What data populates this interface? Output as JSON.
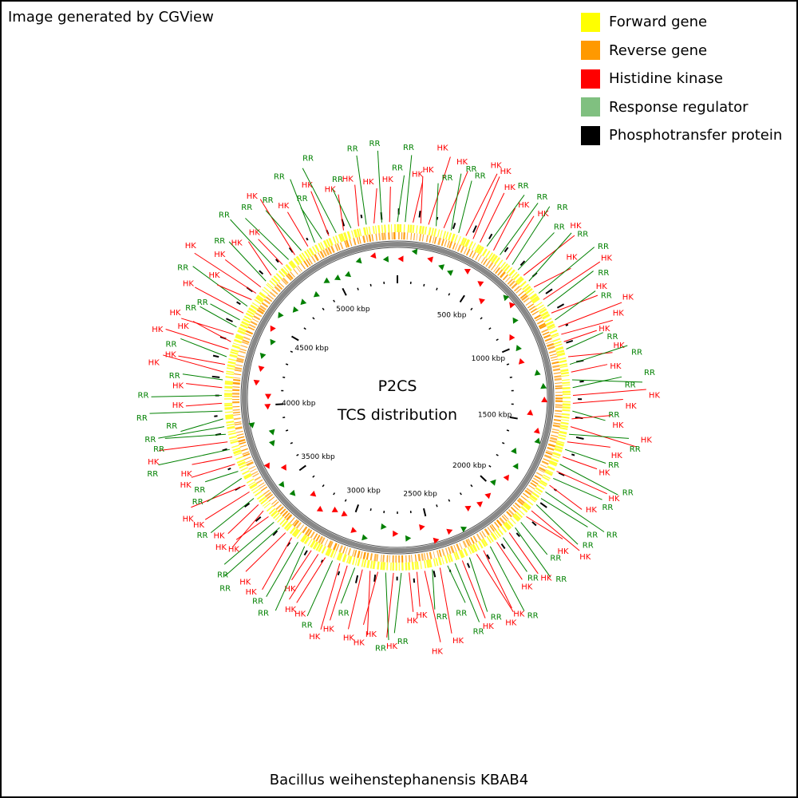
{
  "credit": "Image generated by CGView",
  "organism": "Bacillus weihenstephanensis KBAB4",
  "center_title": "P2CS",
  "center_subtitle": "TCS distribution",
  "legend": [
    {
      "label": "Forward gene",
      "color": "#ffff00"
    },
    {
      "label": "Reverse gene",
      "color": "#ff9900"
    },
    {
      "label": "Histidine kinase",
      "color": "#ff0000"
    },
    {
      "label": "Response regulator",
      "color": "#80c080"
    },
    {
      "label": "Phosphotransfer protein",
      "color": "#000000"
    }
  ],
  "colors": {
    "hk_text": "#ff0000",
    "rr_text": "#008000",
    "backbone": "#808080"
  },
  "scale_labels": [
    "500 kbp",
    "1000 kbp",
    "1500 kbp",
    "2000 kbp",
    "2500 kbp",
    "3000 kbp",
    "3500 kbp",
    "4000 kbp",
    "4500 kbp",
    "5000 kbp"
  ],
  "labels": [
    {
      "text": "RR",
      "type": "RR"
    },
    {
      "text": "RR",
      "type": "RR"
    },
    {
      "text": "HK",
      "type": "HK"
    },
    {
      "text": "HK",
      "type": "HK"
    },
    {
      "text": "HK",
      "type": "HK"
    },
    {
      "text": "RR",
      "type": "RR"
    },
    {
      "text": "HK",
      "type": "HK"
    },
    {
      "text": "RR",
      "type": "RR"
    },
    {
      "text": "RR",
      "type": "RR"
    },
    {
      "text": "HK",
      "type": "HK"
    },
    {
      "text": "HK",
      "type": "HK"
    },
    {
      "text": "HK",
      "type": "HK"
    },
    {
      "text": "RR",
      "type": "RR"
    },
    {
      "text": "HK",
      "type": "HK"
    },
    {
      "text": "RR",
      "type": "RR"
    },
    {
      "text": "HK",
      "type": "HK"
    },
    {
      "text": "RR",
      "type": "RR"
    },
    {
      "text": "RR",
      "type": "RR"
    },
    {
      "text": "HK",
      "type": "HK"
    },
    {
      "text": "RR",
      "type": "RR"
    },
    {
      "text": "HK",
      "type": "HK"
    },
    {
      "text": "RR",
      "type": "RR"
    },
    {
      "text": "HK",
      "type": "HK"
    },
    {
      "text": "RR",
      "type": "RR"
    },
    {
      "text": "HK",
      "type": "HK"
    },
    {
      "text": "RR",
      "type": "RR"
    },
    {
      "text": "HK",
      "type": "HK"
    },
    {
      "text": "HK",
      "type": "HK"
    },
    {
      "text": "HK",
      "type": "HK"
    },
    {
      "text": "RR",
      "type": "RR"
    },
    {
      "text": "HK",
      "type": "HK"
    },
    {
      "text": "RR",
      "type": "RR"
    },
    {
      "text": "HK",
      "type": "HK"
    },
    {
      "text": "RR",
      "type": "RR"
    },
    {
      "text": "RR",
      "type": "RR"
    },
    {
      "text": "HK",
      "type": "HK"
    },
    {
      "text": "HK",
      "type": "HK"
    },
    {
      "text": "RR",
      "type": "RR"
    },
    {
      "text": "HK",
      "type": "HK"
    },
    {
      "text": "HK",
      "type": "HK"
    },
    {
      "text": "RR",
      "type": "RR"
    },
    {
      "text": "HK",
      "type": "HK"
    },
    {
      "text": "RR",
      "type": "RR"
    },
    {
      "text": "HK",
      "type": "HK"
    },
    {
      "text": "RR",
      "type": "RR"
    },
    {
      "text": "HK",
      "type": "HK"
    },
    {
      "text": "RR",
      "type": "RR"
    },
    {
      "text": "HK",
      "type": "HK"
    },
    {
      "text": "RR",
      "type": "RR"
    },
    {
      "text": "RR",
      "type": "RR"
    },
    {
      "text": "RR",
      "type": "RR"
    },
    {
      "text": "HK",
      "type": "HK"
    },
    {
      "text": "HK",
      "type": "HK"
    },
    {
      "text": "RR",
      "type": "RR"
    },
    {
      "text": "RR",
      "type": "RR"
    },
    {
      "text": "HK",
      "type": "HK"
    },
    {
      "text": "RR",
      "type": "RR"
    },
    {
      "text": "HK",
      "type": "HK"
    },
    {
      "text": "RR",
      "type": "RR"
    },
    {
      "text": "HK",
      "type": "HK"
    },
    {
      "text": "HK",
      "type": "HK"
    },
    {
      "text": "RR",
      "type": "RR"
    },
    {
      "text": "HK",
      "type": "HK"
    },
    {
      "text": "RR",
      "type": "RR"
    },
    {
      "text": "RR",
      "type": "RR"
    },
    {
      "text": "HK",
      "type": "HK"
    },
    {
      "text": "RR",
      "type": "RR"
    },
    {
      "text": "HK",
      "type": "HK"
    },
    {
      "text": "HK",
      "type": "HK"
    },
    {
      "text": "HK",
      "type": "HK"
    },
    {
      "text": "RR",
      "type": "RR"
    },
    {
      "text": "HK",
      "type": "HK"
    },
    {
      "text": "RR",
      "type": "RR"
    },
    {
      "text": "HK",
      "type": "HK"
    },
    {
      "text": "HK",
      "type": "HK"
    },
    {
      "text": "HK",
      "type": "HK"
    },
    {
      "text": "RR",
      "type": "RR"
    },
    {
      "text": "HK",
      "type": "HK"
    },
    {
      "text": "HK",
      "type": "HK"
    },
    {
      "text": "RR",
      "type": "RR"
    },
    {
      "text": "HK",
      "type": "HK"
    },
    {
      "text": "HK",
      "type": "HK"
    },
    {
      "text": "HK",
      "type": "HK"
    },
    {
      "text": "RR",
      "type": "RR"
    },
    {
      "text": "RR",
      "type": "RR"
    },
    {
      "text": "HK",
      "type": "HK"
    },
    {
      "text": "HK",
      "type": "HK"
    },
    {
      "text": "RR",
      "type": "RR"
    },
    {
      "text": "RR",
      "type": "RR"
    },
    {
      "text": "HK",
      "type": "HK"
    },
    {
      "text": "HK",
      "type": "HK"
    },
    {
      "text": "HK",
      "type": "HK"
    },
    {
      "text": "RR",
      "type": "RR"
    },
    {
      "text": "HK",
      "type": "HK"
    },
    {
      "text": "HK",
      "type": "HK"
    },
    {
      "text": "RR",
      "type": "RR"
    },
    {
      "text": "RR",
      "type": "RR"
    },
    {
      "text": "HK",
      "type": "HK"
    },
    {
      "text": "HK",
      "type": "HK"
    },
    {
      "text": "RR",
      "type": "RR"
    },
    {
      "text": "HK",
      "type": "HK"
    },
    {
      "text": "RR",
      "type": "RR"
    },
    {
      "text": "RR",
      "type": "RR"
    },
    {
      "text": "RR",
      "type": "RR"
    },
    {
      "text": "RR",
      "type": "RR"
    },
    {
      "text": "HK",
      "type": "HK"
    },
    {
      "text": "RR",
      "type": "RR"
    },
    {
      "text": "HK",
      "type": "HK"
    },
    {
      "text": "RR",
      "type": "RR"
    },
    {
      "text": "HK",
      "type": "HK"
    },
    {
      "text": "HK",
      "type": "HK"
    },
    {
      "text": "RR",
      "type": "RR"
    },
    {
      "text": "HK",
      "type": "HK"
    },
    {
      "text": "HK",
      "type": "HK"
    },
    {
      "text": "HK",
      "type": "HK"
    },
    {
      "text": "RR",
      "type": "RR"
    },
    {
      "text": "RR",
      "type": "RR"
    },
    {
      "text": "HK",
      "type": "HK"
    },
    {
      "text": "RR",
      "type": "RR"
    },
    {
      "text": "HK",
      "type": "HK"
    },
    {
      "text": "HK",
      "type": "HK"
    },
    {
      "text": "HK",
      "type": "HK"
    },
    {
      "text": "RR",
      "type": "RR"
    },
    {
      "text": "HK",
      "type": "HK"
    },
    {
      "text": "RR",
      "type": "RR"
    },
    {
      "text": "HK",
      "type": "HK"
    },
    {
      "text": "RR",
      "type": "RR"
    },
    {
      "text": "HK",
      "type": "HK"
    },
    {
      "text": "RR",
      "type": "RR"
    },
    {
      "text": "HK",
      "type": "HK"
    },
    {
      "text": "RR",
      "type": "RR"
    },
    {
      "text": "RR",
      "type": "RR"
    },
    {
      "text": "HK",
      "type": "HK"
    },
    {
      "text": "RR",
      "type": "RR"
    },
    {
      "text": "HK",
      "type": "HK"
    },
    {
      "text": "RR",
      "type": "RR"
    },
    {
      "text": "HK",
      "type": "HK"
    },
    {
      "text": "RR",
      "type": "RR"
    },
    {
      "text": "HK",
      "type": "HK"
    },
    {
      "text": "RR",
      "type": "RR"
    },
    {
      "text": "HK",
      "type": "HK"
    }
  ]
}
